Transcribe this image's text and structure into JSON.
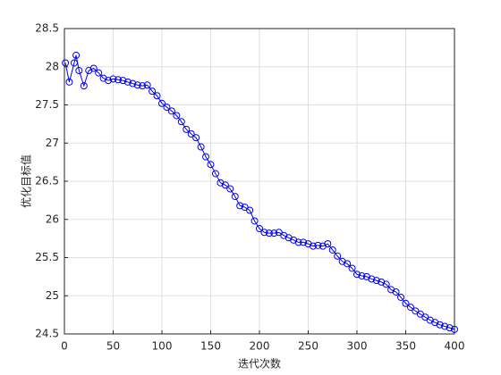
{
  "chart_data": {
    "type": "line",
    "xlabel": "迭代次数",
    "ylabel": "优化目标值",
    "x": [
      1,
      5,
      10,
      12,
      15,
      20,
      25,
      30,
      35,
      40,
      45,
      50,
      55,
      60,
      65,
      70,
      75,
      80,
      85,
      90,
      95,
      100,
      105,
      110,
      115,
      120,
      125,
      130,
      135,
      140,
      145,
      150,
      155,
      160,
      165,
      170,
      175,
      180,
      185,
      190,
      195,
      200,
      205,
      210,
      215,
      220,
      225,
      230,
      235,
      240,
      245,
      250,
      255,
      260,
      265,
      270,
      275,
      280,
      285,
      290,
      295,
      300,
      305,
      310,
      315,
      320,
      325,
      330,
      335,
      340,
      345,
      350,
      355,
      360,
      365,
      370,
      375,
      380,
      385,
      390,
      395,
      400
    ],
    "series": [
      {
        "color": "#0000ff",
        "marker": "circle",
        "values": [
          28.05,
          27.8,
          28.05,
          28.15,
          27.95,
          27.75,
          27.95,
          27.98,
          27.92,
          27.85,
          27.82,
          27.84,
          27.83,
          27.82,
          27.8,
          27.78,
          27.76,
          27.75,
          27.76,
          27.68,
          27.62,
          27.52,
          27.47,
          27.42,
          27.36,
          27.28,
          27.18,
          27.12,
          27.07,
          26.95,
          26.82,
          26.72,
          26.6,
          26.48,
          26.45,
          26.4,
          26.3,
          26.18,
          26.16,
          26.12,
          25.98,
          25.88,
          25.83,
          25.82,
          25.82,
          25.83,
          25.79,
          25.76,
          25.73,
          25.7,
          25.7,
          25.68,
          25.65,
          25.66,
          25.65,
          25.68,
          25.6,
          25.52,
          25.45,
          25.42,
          25.36,
          25.28,
          25.26,
          25.25,
          25.22,
          25.2,
          25.18,
          25.15,
          25.08,
          25.05,
          24.98,
          24.9,
          24.85,
          24.8,
          24.76,
          24.72,
          24.68,
          24.65,
          24.62,
          24.6,
          24.58,
          24.56
        ]
      }
    ],
    "xlim": [
      0,
      400
    ],
    "xticks": [
      0,
      50,
      100,
      150,
      200,
      250,
      300,
      350,
      400
    ],
    "ylim": [
      24.5,
      28.5
    ],
    "yticks": [
      24.5,
      25,
      25.5,
      26,
      26.5,
      27,
      27.5,
      28,
      28.5
    ],
    "grid": true
  }
}
